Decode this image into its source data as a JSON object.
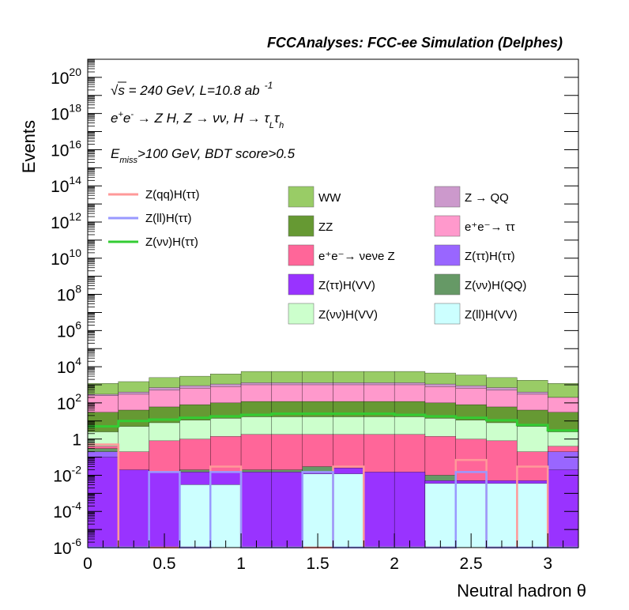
{
  "chart_data": {
    "type": "bar",
    "title": "FCCAnalyses: FCC-ee Simulation (Delphes)",
    "xlabel": "Neutral hadron θ",
    "ylabel": "Events",
    "xlim": [
      0,
      3.2
    ],
    "ylim_log10": [
      -6,
      21
    ],
    "y_scale": "log",
    "x_tick_labels": [
      "0",
      "0.5",
      "1",
      "1.5",
      "2",
      "2.5",
      "3"
    ],
    "annotations": {
      "line1": "√s = 240 GeV, L=10.8 ab⁻¹",
      "line2": "e⁺e⁻ → Z H, Z → νν, H → τLτh",
      "line3": "Emiss>100 GeV, BDT score>0.5"
    },
    "bin_edges": [
      0,
      0.2,
      0.4,
      0.6,
      0.8,
      1.0,
      1.2,
      1.4,
      1.6,
      1.8,
      2.0,
      2.2,
      2.4,
      2.6,
      2.8,
      3.0,
      3.2
    ],
    "stack_totals": [
      {
        "name": "WW",
        "color": "#99cc66",
        "values": [
          1200,
          1500,
          2500,
          3000,
          4000,
          5500,
          5500,
          5500,
          5500,
          5500,
          5500,
          4500,
          3500,
          2500,
          1800,
          1200
        ]
      },
      {
        "name": "Z → QQ",
        "color": "#cc99cc",
        "values": [
          300,
          400,
          700,
          900,
          1100,
          1300,
          1300,
          1300,
          1300,
          1300,
          1300,
          1100,
          900,
          700,
          400,
          200
        ]
      },
      {
        "name": "e⁺e⁻→ ττ",
        "color": "#ff99cc",
        "values": [
          250,
          300,
          500,
          650,
          800,
          1000,
          1000,
          1000,
          1000,
          1000,
          1000,
          800,
          650,
          500,
          300,
          200
        ]
      },
      {
        "name": "ZZ",
        "color": "#669933",
        "values": [
          30,
          40,
          60,
          80,
          100,
          120,
          120,
          120,
          120,
          120,
          120,
          100,
          80,
          60,
          40,
          30
        ]
      },
      {
        "name": "Z(νν)H(VV)",
        "color": "#ccffcc",
        "values": [
          2.5,
          5,
          8,
          11,
          14,
          17,
          17,
          17,
          17,
          17,
          17,
          14,
          11,
          8,
          5,
          2.5
        ]
      },
      {
        "name": "e⁺e⁻→ νeνe Z",
        "color": "#ff6699",
        "values": [
          0.4,
          0.2,
          0.8,
          1.0,
          1.4,
          1.8,
          1.8,
          1.8,
          1.8,
          1.8,
          1.8,
          1.4,
          1.0,
          0.8,
          0.2,
          0.4
        ]
      },
      {
        "name": "Z(νν)H(QQ)",
        "color": "#669966",
        "values": [
          0.3,
          0.0,
          0.005,
          0.02,
          0.01,
          0.02,
          0.02,
          0.03,
          0.02,
          0.01,
          0.01,
          0.01,
          0.005,
          0.003,
          0.003,
          0.002
        ]
      },
      {
        "name": "Z(ττ)H(ττ)",
        "color": "#9966ff",
        "values": [
          0.2,
          0.002,
          0.002,
          0.002,
          0.002,
          0.002,
          0.002,
          0.002,
          0.002,
          0.002,
          0.002,
          0.002,
          0.002,
          0.002,
          0.002,
          0.2
        ]
      },
      {
        "name": "Z(ττ)H(VV)",
        "color": "#9933ff",
        "values": [
          0.1,
          0.02,
          0.015,
          0.015,
          0.015,
          0.015,
          0.015,
          0.015,
          0.025,
          0.015,
          0.015,
          0.005,
          0.005,
          0.005,
          0.005,
          0.02
        ]
      },
      {
        "name": "Z(ll)H(VV)",
        "color": "#ccffff",
        "values": [
          0,
          0,
          0,
          0.003,
          0.003,
          0,
          0,
          0.012,
          0.012,
          0,
          0,
          0.0035,
          0.0035,
          0.0035,
          0.0035,
          0
        ]
      }
    ],
    "line_series": [
      {
        "name": "Z(qq)H(ττ)",
        "color": "#ff9999",
        "values": [
          0.5,
          1e-06,
          1e-06,
          1e-06,
          0.03,
          1e-06,
          1e-06,
          1e-06,
          0.03,
          1e-06,
          1e-06,
          1e-06,
          0.07,
          1e-06,
          0.03,
          1e-06
        ]
      },
      {
        "name": "Z(ll)H(ττ)",
        "color": "#9999ff",
        "values": [
          1e-06,
          1e-06,
          0.015,
          1e-06,
          0.015,
          1e-06,
          1e-06,
          0.015,
          1e-06,
          1e-06,
          1e-06,
          1e-06,
          0.015,
          1e-06,
          1e-06,
          1e-06
        ]
      },
      {
        "name": "Z(νν)H(ττ)",
        "color": "#33cc33",
        "values": [
          5,
          10,
          12,
          15,
          18,
          22,
          25,
          25,
          25,
          25,
          22,
          18,
          15,
          11,
          6,
          3
        ]
      }
    ],
    "legend_left": [
      "Z(qq)H(ττ)",
      "Z(ll)H(ττ)",
      "Z(νν)H(ττ)"
    ],
    "legend_mid": [
      "WW",
      "ZZ",
      "e⁺e⁻→ νeνe Z",
      "Z(ττ)H(VV)",
      "Z(νν)H(VV)"
    ],
    "legend_right": [
      "Z → QQ",
      "e⁺e⁻→ ττ",
      "Z(ττ)H(ττ)",
      "Z(νν)H(QQ)",
      "Z(ll)H(VV)"
    ]
  }
}
